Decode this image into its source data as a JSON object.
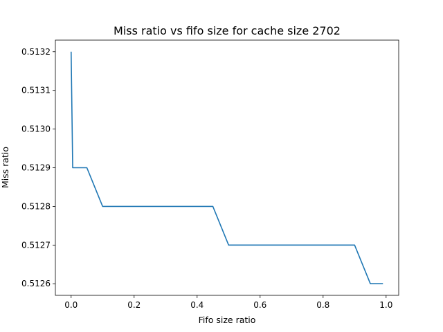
{
  "chart_data": {
    "type": "line",
    "title": "Miss ratio vs fifo size for cache size 2702",
    "xlabel": "Fifo size ratio",
    "ylabel": "Miss ratio",
    "xlim": [
      -0.05,
      1.04
    ],
    "ylim": [
      0.51257,
      0.51323
    ],
    "grid": false,
    "x_ticks": [
      0.0,
      0.2,
      0.4,
      0.6,
      0.8,
      1.0
    ],
    "x_tick_labels": [
      "0.0",
      "0.2",
      "0.4",
      "0.6",
      "0.8",
      "1.0"
    ],
    "y_ticks": [
      0.5126,
      0.5127,
      0.5128,
      0.5129,
      0.513,
      0.5131,
      0.5132
    ],
    "y_tick_labels": [
      "0.5126",
      "0.5127",
      "0.5128",
      "0.5129",
      "0.5130",
      "0.5131",
      "0.5132"
    ],
    "series": [
      {
        "color": "#1f77b4",
        "x": [
          0.0,
          0.005,
          0.01,
          0.05,
          0.1,
          0.15,
          0.2,
          0.25,
          0.3,
          0.35,
          0.4,
          0.45,
          0.5,
          0.55,
          0.6,
          0.65,
          0.7,
          0.75,
          0.8,
          0.85,
          0.9,
          0.95,
          0.99
        ],
        "y": [
          0.5132,
          0.5129,
          0.5129,
          0.5129,
          0.5128,
          0.5128,
          0.5128,
          0.5128,
          0.5128,
          0.5128,
          0.5128,
          0.5128,
          0.5127,
          0.5127,
          0.5127,
          0.5127,
          0.5127,
          0.5127,
          0.5127,
          0.5127,
          0.5127,
          0.5126,
          0.5126
        ]
      }
    ]
  }
}
